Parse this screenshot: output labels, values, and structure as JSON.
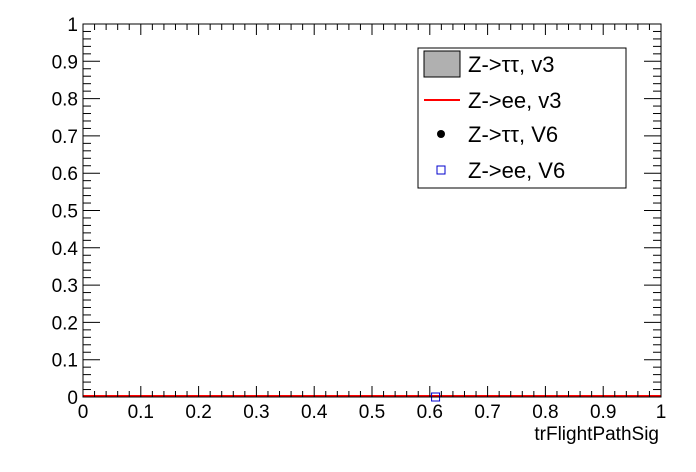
{
  "chart_data": {
    "type": "line",
    "title": "",
    "xlabel": "trFlightPathSig",
    "ylabel": "",
    "xlim": [
      0,
      1
    ],
    "ylim": [
      0,
      1
    ],
    "x_ticks": [
      "0",
      "0.1",
      "0.2",
      "0.3",
      "0.4",
      "0.5",
      "0.6",
      "0.7",
      "0.8",
      "0.9",
      "1"
    ],
    "y_ticks": [
      "0",
      "0.1",
      "0.2",
      "0.3",
      "0.4",
      "0.5",
      "0.6",
      "0.7",
      "0.8",
      "0.9",
      "1"
    ],
    "grid": false,
    "legend_position": "top-right",
    "series": [
      {
        "name": "Z->ττ, v3",
        "style": "filled-histogram",
        "color": "#b0b0b0",
        "x": [
          0,
          1
        ],
        "y": [
          0,
          0
        ]
      },
      {
        "name": "Z->ee, v3",
        "style": "line",
        "color": "#ff0000",
        "x": [
          0,
          1
        ],
        "y": [
          0,
          0
        ]
      },
      {
        "name": "Z->ττ, V6",
        "style": "marker-dot",
        "color": "#000000",
        "x": [],
        "y": []
      },
      {
        "name": "Z->ee, V6",
        "style": "marker-open-square",
        "color": "#0000cc",
        "x": [
          0.61
        ],
        "y": [
          0
        ]
      }
    ]
  }
}
